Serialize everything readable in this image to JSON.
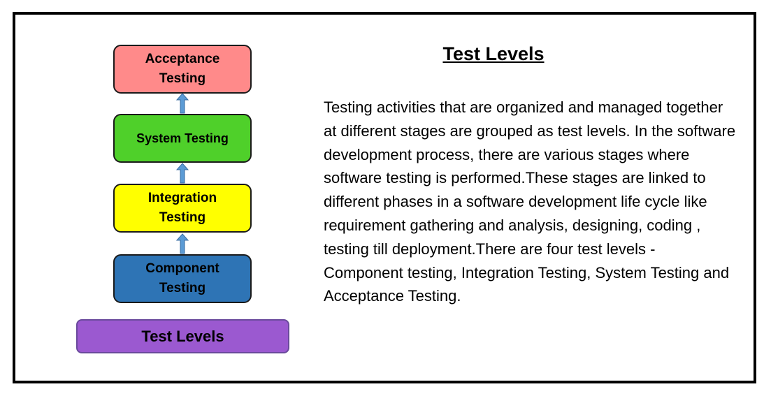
{
  "diagram": {
    "levels": [
      {
        "id": "acceptance",
        "label": "Acceptance\nTesting",
        "color": "#ff8a8a"
      },
      {
        "id": "system",
        "label": "System Testing",
        "color": "#4fd02a"
      },
      {
        "id": "integration",
        "label": "Integration\nTesting",
        "color": "#ffff00"
      },
      {
        "id": "component",
        "label": "Component\nTesting",
        "color": "#2e74b5"
      }
    ],
    "base": {
      "label": "Test Levels",
      "color": "#9b59d0"
    },
    "arrow_color": "#5b9bd5"
  },
  "content": {
    "title": "Test Levels",
    "description": "Testing activities that are organized and managed together at different stages are grouped as test levels. In the software development process, there are various stages where software testing is performed.These stages are linked to different phases in a software development life cycle like requirement gathering and analysis, designing, coding , testing till deployment.There are four test levels - Component testing, Integration Testing, System Testing and Acceptance Testing."
  }
}
